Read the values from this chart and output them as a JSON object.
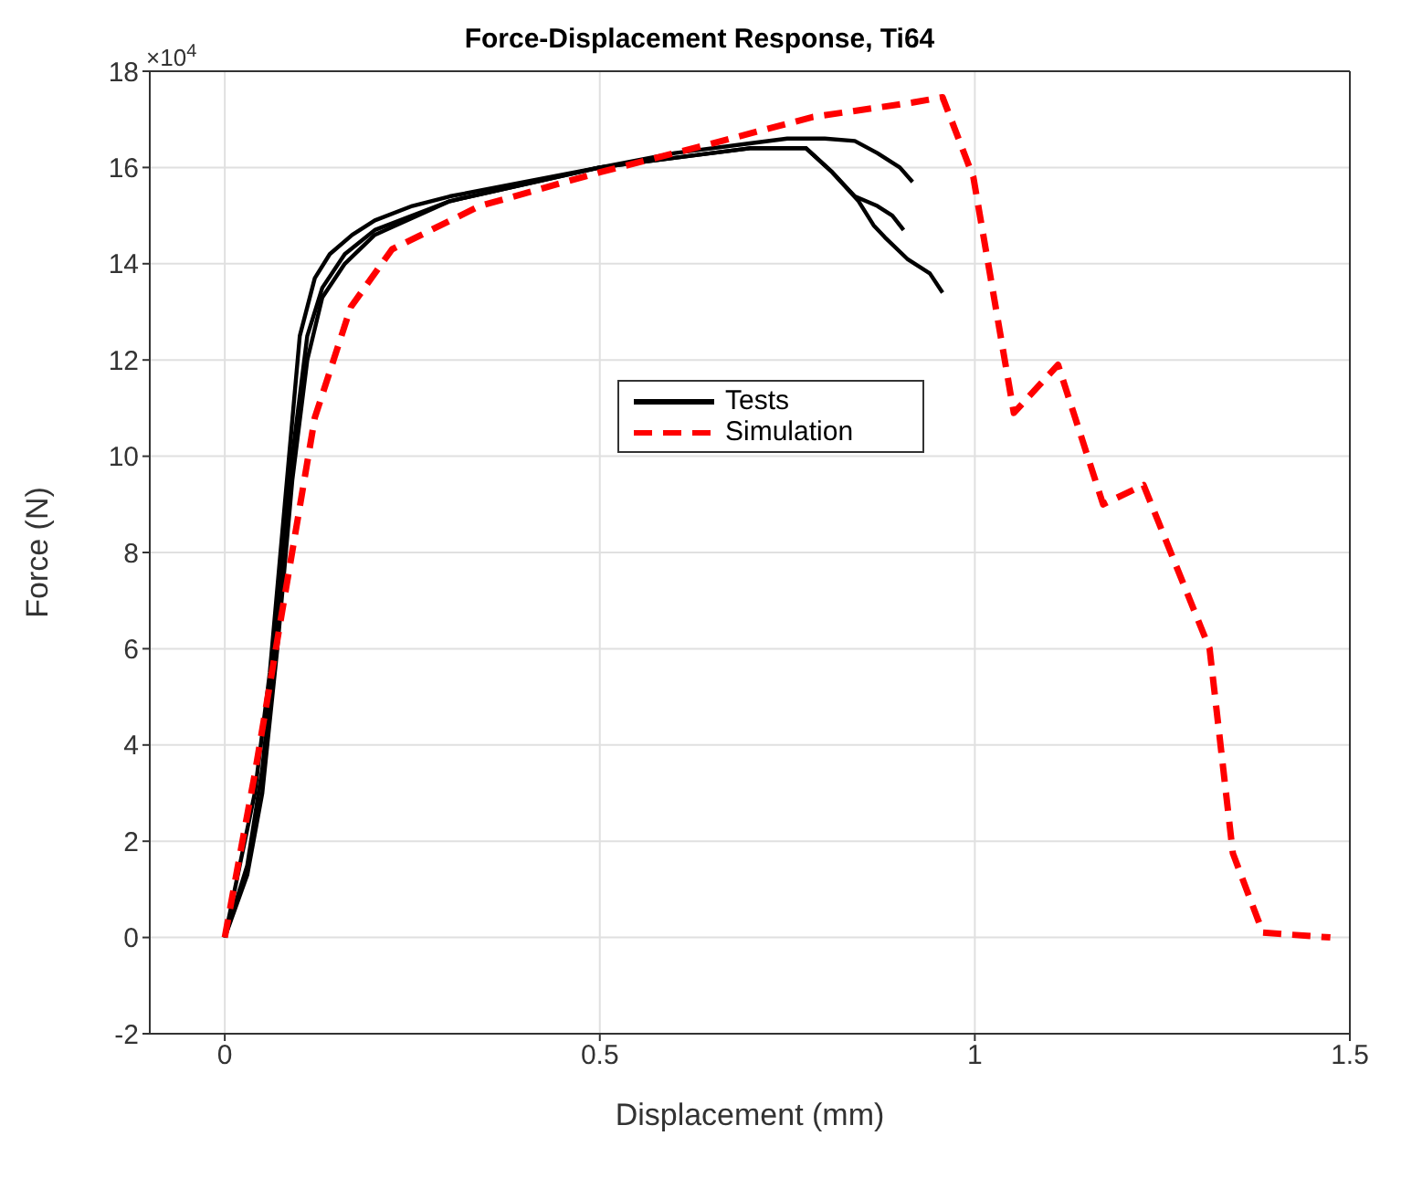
{
  "chart_data": {
    "type": "line",
    "title": "Force-Displacement Response, Ti64",
    "xlabel": "Displacement (mm)",
    "ylabel": "Force (N)",
    "annotations": [
      "×10$^{4}$"
    ],
    "xlim": [
      -0.1,
      1.5
    ],
    "xticks": [
      0,
      0.5,
      1,
      1.5
    ],
    "ylim": [
      -2,
      18
    ],
    "yticks": [
      -2,
      0,
      2,
      4,
      6,
      8,
      10,
      12,
      14,
      16,
      18
    ],
    "grid": true,
    "legend": "center",
    "marker": "none",
    "series": [
      {
        "name": "Tests",
        "color": "#000000",
        "line_style": "solid",
        "x": [
          0,
          0.02,
          0.04,
          0.06,
          0.08,
          0.1,
          0.12,
          0.14,
          0.17,
          0.2,
          0.25,
          0.3,
          0.4,
          0.5,
          0.6,
          0.7,
          0.75,
          0.8,
          0.84,
          0.87,
          0.9,
          0.917
        ],
        "values": [
          0,
          1.5,
          3,
          5.5,
          9,
          12.5,
          13.7,
          14.2,
          14.6,
          14.9,
          15.2,
          15.4,
          15.7,
          16,
          16.3,
          16.5,
          16.6,
          16.6,
          16.55,
          16.3,
          16,
          15.7
        ]
      },
      {
        "color": "#000000",
        "line_style": "solid",
        "x": [
          0,
          0.03,
          0.05,
          0.07,
          0.09,
          0.11,
          0.13,
          0.16,
          0.2,
          0.3,
          0.5,
          0.7,
          0.775,
          0.81,
          0.84,
          0.855,
          0.87,
          0.89,
          0.905
        ],
        "values": [
          0,
          1.5,
          3.5,
          6.5,
          10,
          12.5,
          13.5,
          14.2,
          14.7,
          15.3,
          16,
          16.4,
          16.4,
          15.9,
          15.4,
          15.3,
          15.2,
          15,
          14.7
        ]
      },
      {
        "color": "#000000",
        "line_style": "solid",
        "x": [
          0,
          0.03,
          0.05,
          0.07,
          0.09,
          0.11,
          0.13,
          0.16,
          0.2,
          0.3,
          0.5,
          0.7,
          0.775,
          0.81,
          0.845,
          0.865,
          0.88,
          0.91,
          0.94,
          0.957
        ],
        "values": [
          0,
          1.3,
          3,
          6,
          9.5,
          12,
          13.3,
          14,
          14.6,
          15.3,
          16,
          16.4,
          16.4,
          15.9,
          15.3,
          14.8,
          14.55,
          14.1,
          13.8,
          13.4
        ]
      },
      {
        "name": "Simulation",
        "color": "#ff0000",
        "line_style": "dashed",
        "x": [
          0,
          0.04,
          0.08,
          0.12,
          0.168,
          0.223,
          0.34,
          0.5,
          0.65,
          0.784,
          0.917,
          0.957,
          0.998,
          1.052,
          1.111,
          1.171,
          1.225,
          1.313,
          1.344,
          1.384,
          1.474
        ],
        "values": [
          0,
          3.4,
          7.1,
          10.8,
          13.1,
          14.3,
          15.2,
          15.9,
          16.5,
          17.05,
          17.35,
          17.46,
          15.8,
          10.9,
          11.9,
          9,
          9.4,
          6,
          1.75,
          0.1,
          0
        ]
      }
    ]
  }
}
